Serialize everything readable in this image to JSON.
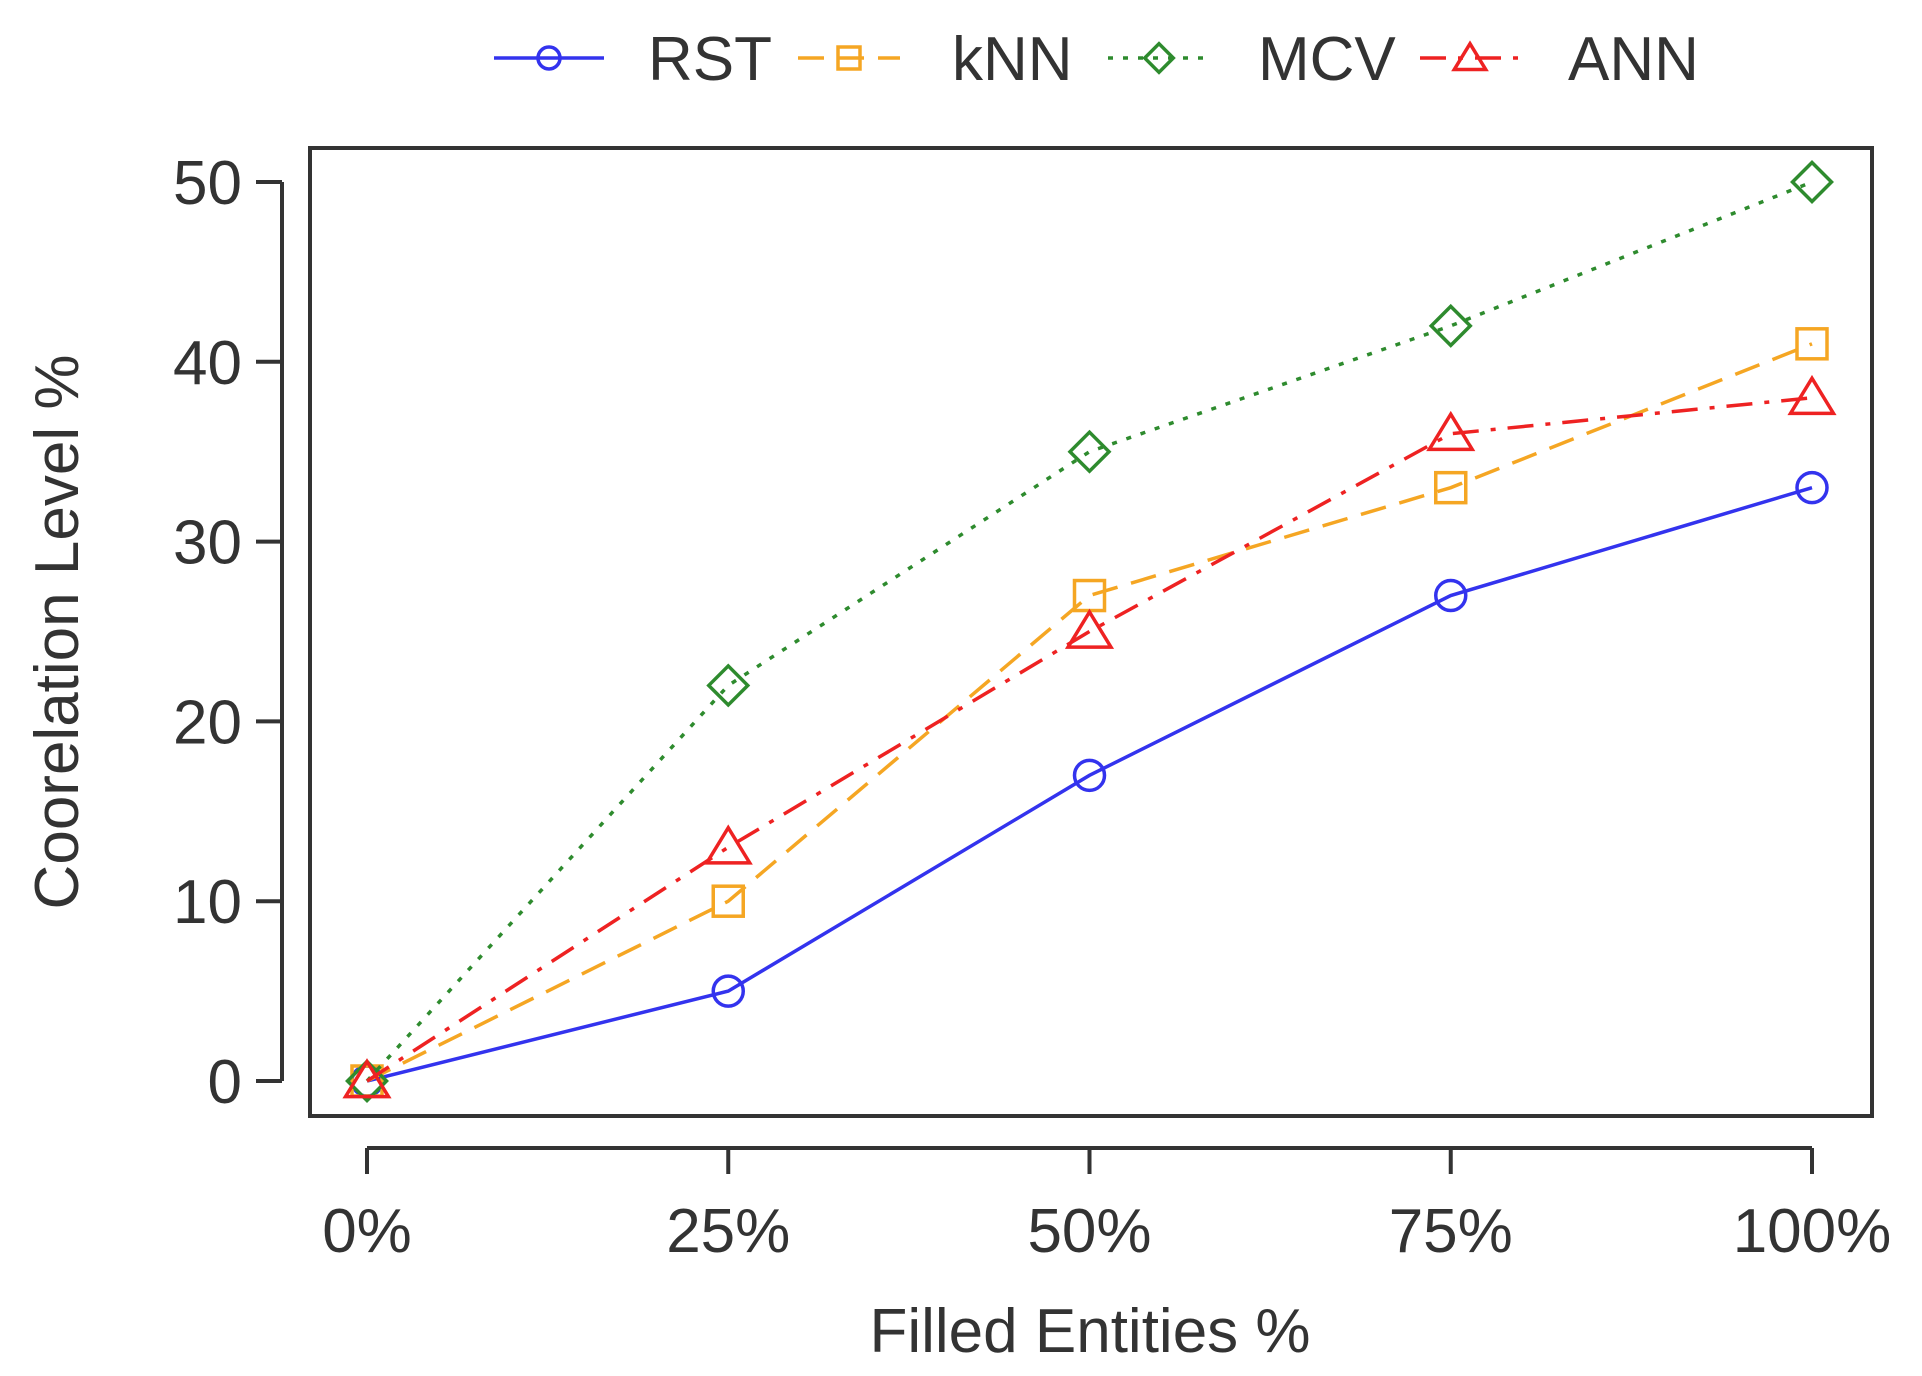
{
  "chart_data": {
    "type": "line",
    "title": "",
    "xlabel": "Filled Entities %",
    "ylabel": "Coorelation Level %",
    "categories": [
      "0%",
      "25%",
      "50%",
      "75%",
      "100%"
    ],
    "x": [
      0,
      25,
      50,
      75,
      100
    ],
    "yticks": [
      "0",
      "10",
      "20",
      "30",
      "40",
      "50"
    ],
    "ylim": [
      0,
      50
    ],
    "grid": false,
    "legend_position": "top",
    "series": [
      {
        "name": "RST",
        "values": [
          0,
          5,
          17,
          27,
          33
        ],
        "color": "#3333ee",
        "marker": "circle",
        "line_style": "solid"
      },
      {
        "name": "kNN",
        "values": [
          0,
          10,
          27,
          33,
          41
        ],
        "color": "#f5a623",
        "marker": "square",
        "line_style": "dashed"
      },
      {
        "name": "MCV",
        "values": [
          0,
          22,
          35,
          42,
          50
        ],
        "color": "#2e8b2e",
        "marker": "diamond",
        "line_style": "dotted"
      },
      {
        "name": "ANN",
        "values": [
          0,
          13,
          25,
          36,
          38
        ],
        "color": "#ee2222",
        "marker": "triangle",
        "line_style": "dashdot"
      }
    ]
  }
}
